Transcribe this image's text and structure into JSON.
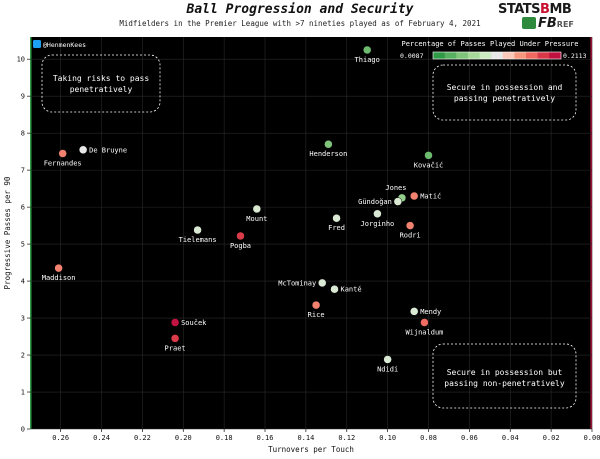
{
  "header": {
    "title": "Ball Progression and Security",
    "subtitle": "Midfielders in the Premier League with >7 nineties played as of February 4, 2021"
  },
  "logos": {
    "statsbomb_part1": "STATS",
    "statsbomb_part2": "B",
    "statsbomb_part3": "MB",
    "fbref_part1": "FB",
    "fbref_part2": "REF"
  },
  "twitter": {
    "handle": "@HenmenKees"
  },
  "colorbar": {
    "title": "Percentage of Passes Played Under Pressure",
    "min_label": "0.0087",
    "max_label": "0.2113",
    "colors": [
      "#2e9a45",
      "#56b060",
      "#7ec47a",
      "#a6d89a",
      "#ccebc0",
      "#e8e8e8",
      "#f8c8b8",
      "#f6987e",
      "#ee6a60",
      "#d83848",
      "#c01040"
    ]
  },
  "annotations": {
    "top_left": [
      "Taking risks to pass",
      "penetratively"
    ],
    "top_right": [
      "Secure in possession and",
      "passing penetratively"
    ],
    "bottom_right": [
      "Secure in possession but",
      "passing non-penetratively"
    ]
  },
  "chart_data": {
    "type": "scatter",
    "title": "Ball Progression and Security",
    "xlabel": "Turnovers per Touch",
    "ylabel": "Progressive Passes per 90",
    "xlim": [
      0.275,
      0.0
    ],
    "ylim": [
      0,
      10.6
    ],
    "x_reversed": true,
    "xticks": [
      "0.26",
      "0.24",
      "0.22",
      "0.20",
      "0.18",
      "0.16",
      "0.14",
      "0.12",
      "0.10",
      "0.08",
      "0.06",
      "0.04",
      "0.02",
      "0.00"
    ],
    "xtick_values": [
      0.26,
      0.24,
      0.22,
      0.2,
      0.18,
      0.16,
      0.14,
      0.12,
      0.1,
      0.08,
      0.06,
      0.04,
      0.02,
      0.0
    ],
    "yticks": [
      "0",
      "1",
      "2",
      "3",
      "4",
      "5",
      "6",
      "7",
      "8",
      "9",
      "10"
    ],
    "ytick_values": [
      0,
      1,
      2,
      3,
      4,
      5,
      6,
      7,
      8,
      9,
      10
    ],
    "color_metric_range": [
      0.0087,
      0.2113
    ],
    "points": [
      {
        "player": "Thiago",
        "x": 0.11,
        "y": 10.25,
        "pressure": 0.04,
        "label_pos": "below"
      },
      {
        "player": "De Bruyne",
        "x": 0.249,
        "y": 7.55,
        "pressure": 0.11,
        "label_pos": "right"
      },
      {
        "player": "Fernandes",
        "x": 0.259,
        "y": 7.45,
        "pressure": 0.16,
        "label_pos": "below"
      },
      {
        "player": "Henderson",
        "x": 0.129,
        "y": 7.7,
        "pressure": 0.05,
        "label_pos": "below"
      },
      {
        "player": "Kovačić",
        "x": 0.08,
        "y": 7.4,
        "pressure": 0.04,
        "label_pos": "below"
      },
      {
        "player": "Jones",
        "x": 0.093,
        "y": 6.25,
        "pressure": 0.06,
        "label_pos": "above"
      },
      {
        "player": "Matić",
        "x": 0.087,
        "y": 6.3,
        "pressure": 0.16,
        "label_pos": "right"
      },
      {
        "player": "Gündoğan",
        "x": 0.095,
        "y": 6.15,
        "pressure": 0.1,
        "label_pos": "left"
      },
      {
        "player": "Mount",
        "x": 0.164,
        "y": 5.95,
        "pressure": 0.1,
        "label_pos": "below"
      },
      {
        "player": "Fred",
        "x": 0.125,
        "y": 5.7,
        "pressure": 0.1,
        "label_pos": "below"
      },
      {
        "player": "Jorginho",
        "x": 0.105,
        "y": 5.82,
        "pressure": 0.1,
        "label_pos": "below"
      },
      {
        "player": "Rodri",
        "x": 0.089,
        "y": 5.5,
        "pressure": 0.16,
        "label_pos": "below"
      },
      {
        "player": "Tielemans",
        "x": 0.193,
        "y": 5.38,
        "pressure": 0.1,
        "label_pos": "below"
      },
      {
        "player": "Pogba",
        "x": 0.172,
        "y": 5.22,
        "pressure": 0.19,
        "label_pos": "below"
      },
      {
        "player": "Maddison",
        "x": 0.261,
        "y": 4.35,
        "pressure": 0.16,
        "label_pos": "below"
      },
      {
        "player": "McTominay",
        "x": 0.132,
        "y": 3.95,
        "pressure": 0.1,
        "label_pos": "left"
      },
      {
        "player": "Kanté",
        "x": 0.126,
        "y": 3.78,
        "pressure": 0.1,
        "label_pos": "right"
      },
      {
        "player": "Rice",
        "x": 0.135,
        "y": 3.35,
        "pressure": 0.16,
        "label_pos": "below"
      },
      {
        "player": "Mendy",
        "x": 0.087,
        "y": 3.18,
        "pressure": 0.1,
        "label_pos": "right"
      },
      {
        "player": "Wijnaldum",
        "x": 0.082,
        "y": 2.88,
        "pressure": 0.17,
        "label_pos": "below"
      },
      {
        "player": "Souček",
        "x": 0.204,
        "y": 2.88,
        "pressure": 0.21,
        "label_pos": "right"
      },
      {
        "player": "Praet",
        "x": 0.204,
        "y": 2.45,
        "pressure": 0.19,
        "label_pos": "below"
      },
      {
        "player": "Ndidi",
        "x": 0.1,
        "y": 1.88,
        "pressure": 0.1,
        "label_pos": "below"
      }
    ]
  }
}
